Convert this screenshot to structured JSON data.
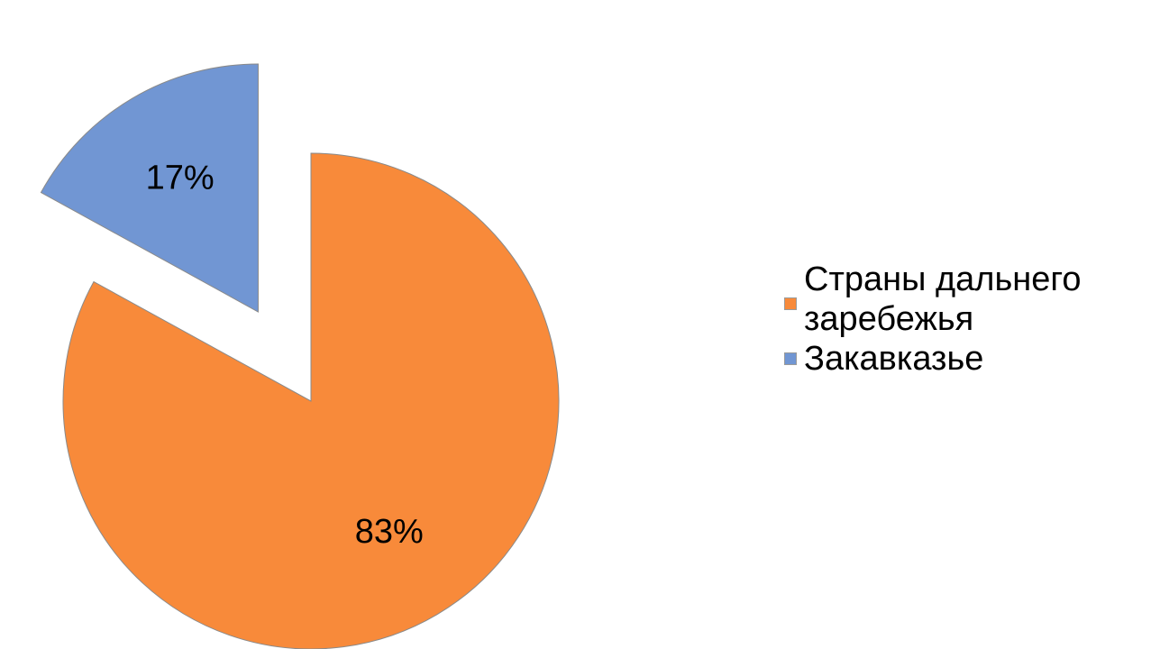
{
  "chart_data": {
    "type": "pie",
    "exploded": true,
    "slices": [
      {
        "label": "Страны дальнего заребежья",
        "value": 83,
        "display": "83%",
        "color": "#f88a3a"
      },
      {
        "label": "Закавказье",
        "value": 17,
        "display": "17%",
        "color": "#7196d3"
      }
    ],
    "legend_position": "right"
  },
  "legend": {
    "items": [
      {
        "label": "Страны дальнего заребежья",
        "color": "#f88a3a"
      },
      {
        "label": "Закавказье",
        "color": "#7196d3"
      }
    ]
  }
}
